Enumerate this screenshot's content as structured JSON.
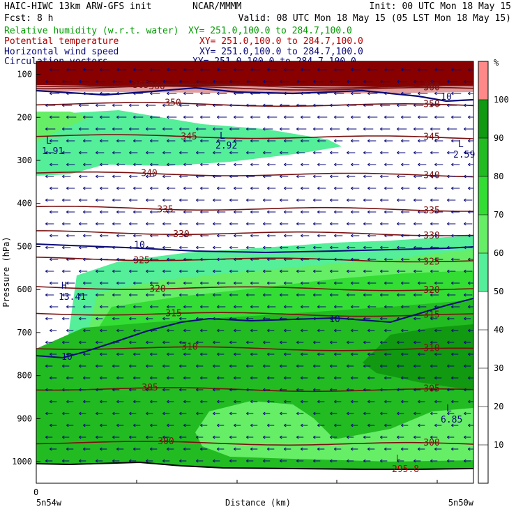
{
  "header": {
    "model": "HAIC-HIWC 13km ARW-GFS init",
    "center": "NCAR/MMMM",
    "init": "Init: 00 UTC Mon 18 May 15",
    "fcst": "Fcst:    8 h",
    "valid": "Valid: 08 UTC Mon 18 May 15 (05 LST Mon 18 May 15)",
    "fields": [
      {
        "name": "Relative humidity (w.r.t. water)",
        "coords": "XY= 251.0,100.0 to 284.7,100.0",
        "color": "#009900"
      },
      {
        "name": "Potential temperature",
        "coords": "XY= 251.0,100.0 to 284.7,100.0",
        "color": "#b40000"
      },
      {
        "name": "Horizontal wind speed",
        "coords": "XY= 251.0,100.0 to 284.7,100.0",
        "color": "#0a0a78"
      },
      {
        "name": "Circulation vectors",
        "coords": "XY= 251.0,100.0 to 284.7,100.0",
        "color": "#0a0a78"
      }
    ]
  },
  "chart_data": {
    "type": "heatmap",
    "title": "Relative humidity (w.r.t. water)",
    "xlabel": "Distance (km)",
    "ylabel": "Pressure (hPa)",
    "x_start_label": "0",
    "x_left_label": "5n54w",
    "x_right_label": "5n50w",
    "yticks": [
      100,
      200,
      300,
      400,
      500,
      600,
      700,
      800,
      900,
      1000
    ],
    "ylim": [
      1050,
      70
    ],
    "colorbar": {
      "unit": "%",
      "levels": [
        10,
        20,
        30,
        40,
        50,
        60,
        70,
        80,
        90,
        100
      ],
      "colors": [
        "#ffffff",
        "#ffffff",
        "#ffffff",
        "#ffffff",
        "#ffffff",
        "#55ee99",
        "#66ee66",
        "#33dd33",
        "#22bb22",
        "#119911",
        "#880000",
        "#ff8888"
      ]
    },
    "theta_contours": [
      {
        "label": "365",
        "p": 125
      },
      {
        "label": "360",
        "p": 130
      },
      {
        "label": "350",
        "p": 168
      },
      {
        "label": "345",
        "p": 243
      },
      {
        "label": "340",
        "p": 330
      },
      {
        "label": "335",
        "p": 410
      },
      {
        "label": "330",
        "p": 467
      },
      {
        "label": "325",
        "p": 528
      },
      {
        "label": "320",
        "p": 595
      },
      {
        "label": "315",
        "p": 655
      },
      {
        "label": "310",
        "p": 735
      },
      {
        "label": "305",
        "p": 830
      },
      {
        "label": "300",
        "p": 955
      }
    ],
    "wind_speed_contours": [
      {
        "label": "10",
        "p": 497
      },
      {
        "label": "10",
        "p": 660
      },
      {
        "label": "10",
        "p": 130
      }
    ],
    "extrema": [
      {
        "type": "L",
        "value": "1.91"
      },
      {
        "type": "L",
        "value": "2.92"
      },
      {
        "type": "L",
        "value": "2.59"
      },
      {
        "type": "H",
        "value": "13.41"
      },
      {
        "type": "L",
        "value": "6.85"
      },
      {
        "type": "L",
        "value": "295.8"
      }
    ]
  }
}
